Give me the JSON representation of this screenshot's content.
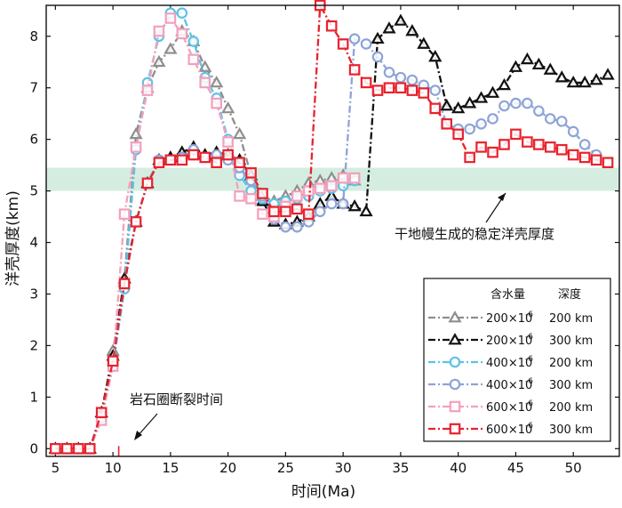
{
  "chart_data": {
    "type": "line",
    "xlabel": "时间(Ma)",
    "ylabel": "洋壳厚度(km)",
    "xlim": [
      4.2,
      54
    ],
    "ylim": [
      -0.15,
      8.6
    ],
    "xticks": [
      "5",
      "10",
      "15",
      "20",
      "25",
      "30",
      "35",
      "40",
      "45",
      "50"
    ],
    "yticks": [
      "0",
      "1",
      "2",
      "3",
      "4",
      "5",
      "6",
      "7",
      "8"
    ],
    "grid": false,
    "legend_position": "bottom-right",
    "legend_header": {
      "water": "含水量",
      "depth": "深度"
    },
    "band": {
      "y0": 5.0,
      "y1": 5.45,
      "color": "#d5ede0"
    },
    "vline": {
      "x": 10.5,
      "color": "#e8222e"
    },
    "annotations": [
      {
        "text": "干地幔生成的稳定洋壳厚度",
        "target": [
          40,
          5.15
        ]
      },
      {
        "text": "岩石圈断裂时间",
        "target": [
          10.8,
          0.15
        ]
      }
    ],
    "series": [
      {
        "water": "200×10",
        "exp": "-6",
        "depth": "200 km",
        "color": "#8e8e8e",
        "marker": "triangle",
        "dash": "8,3,2,3",
        "x": [
          5,
          6,
          7,
          8,
          9,
          10,
          11,
          12,
          13,
          14,
          15,
          16,
          17,
          18,
          19,
          20,
          21,
          22,
          23,
          24,
          25,
          26,
          27,
          28,
          29,
          30,
          31
        ],
        "y": [
          0,
          0,
          0,
          0,
          0.7,
          1.9,
          3.3,
          6.1,
          7.0,
          7.5,
          7.75,
          8.1,
          7.9,
          7.4,
          7.1,
          6.6,
          6.1,
          5.3,
          4.9,
          4.8,
          4.9,
          5.0,
          5.15,
          5.2,
          5.25,
          5.3,
          5.2
        ]
      },
      {
        "water": "200×10",
        "exp": "-6",
        "depth": "300 km",
        "color": "#111111",
        "marker": "triangle",
        "dash": "8,3,2,3",
        "x": [
          5,
          6,
          7,
          8,
          9,
          10,
          11,
          12,
          13,
          14,
          15,
          16,
          17,
          18,
          19,
          20,
          21,
          22,
          23,
          24,
          25,
          26,
          27,
          28,
          29,
          30,
          31,
          32,
          33,
          34,
          35,
          36,
          37,
          38,
          39,
          40,
          41,
          42,
          43,
          44,
          45,
          46,
          47,
          48,
          49,
          50,
          51,
          52,
          53
        ],
        "y": [
          0,
          0,
          0,
          0,
          0.7,
          1.8,
          3.3,
          4.4,
          5.15,
          5.6,
          5.65,
          5.75,
          5.85,
          5.7,
          5.75,
          5.7,
          5.6,
          5.3,
          4.8,
          4.4,
          4.35,
          4.4,
          4.5,
          4.75,
          4.9,
          4.75,
          4.7,
          4.6,
          7.95,
          8.15,
          8.3,
          8.1,
          7.85,
          7.6,
          6.65,
          6.6,
          6.7,
          6.8,
          6.9,
          7.05,
          7.4,
          7.55,
          7.45,
          7.35,
          7.2,
          7.1,
          7.1,
          7.15,
          7.25
        ]
      },
      {
        "water": "400×10",
        "exp": "-6",
        "depth": "200 km",
        "color": "#5fc2e4",
        "marker": "circle",
        "dash": "8,3,2,3",
        "x": [
          5,
          6,
          7,
          8,
          9,
          10,
          11,
          12,
          13,
          14,
          15,
          16,
          17,
          18,
          19,
          20,
          21,
          22,
          23,
          24,
          25,
          26,
          27,
          28,
          29,
          30,
          31
        ],
        "y": [
          0,
          0,
          0,
          0,
          0.6,
          1.6,
          3.1,
          5.8,
          7.1,
          8.0,
          8.45,
          8.45,
          7.9,
          7.2,
          6.8,
          6.0,
          5.3,
          5.0,
          4.85,
          4.75,
          4.8,
          4.85,
          4.9,
          5.0,
          5.05,
          5.1,
          5.2
        ]
      },
      {
        "water": "400×10",
        "exp": "-6",
        "depth": "300 km",
        "color": "#8ea4d6",
        "marker": "circle",
        "dash": "8,3,2,3",
        "x": [
          5,
          6,
          7,
          8,
          9,
          10,
          11,
          12,
          13,
          14,
          15,
          16,
          17,
          18,
          19,
          20,
          21,
          22,
          23,
          24,
          25,
          26,
          27,
          28,
          29,
          30,
          31,
          32,
          33,
          34,
          35,
          36,
          37,
          38,
          39,
          40,
          41,
          42,
          43,
          44,
          45,
          46,
          47,
          48,
          49,
          50,
          51,
          52,
          53
        ],
        "y": [
          0,
          0,
          0,
          0,
          0.6,
          1.7,
          3.2,
          4.4,
          5.15,
          5.6,
          5.6,
          5.65,
          5.8,
          5.65,
          5.7,
          5.6,
          5.45,
          5.2,
          4.9,
          4.45,
          4.3,
          4.3,
          4.4,
          4.6,
          4.75,
          4.75,
          7.95,
          7.85,
          7.6,
          7.3,
          7.2,
          7.15,
          7.05,
          6.95,
          6.3,
          6.2,
          6.2,
          6.3,
          6.4,
          6.65,
          6.7,
          6.7,
          6.55,
          6.4,
          6.35,
          6.15,
          5.9,
          5.7,
          5.55
        ]
      },
      {
        "water": "600×10",
        "exp": "-6",
        "depth": "200 km",
        "color": "#f3a0bc",
        "marker": "square",
        "dash": "8,3,2,3",
        "x": [
          5,
          6,
          7,
          8,
          9,
          10,
          11,
          12,
          13,
          14,
          15,
          16,
          17,
          18,
          19,
          20,
          21,
          22,
          23,
          24,
          25,
          26,
          27,
          28,
          29,
          30,
          31
        ],
        "y": [
          0,
          0,
          0,
          0,
          0.55,
          1.6,
          4.55,
          5.85,
          6.95,
          8.1,
          8.35,
          8.05,
          7.55,
          7.1,
          6.7,
          5.95,
          4.9,
          4.85,
          4.55,
          4.5,
          4.7,
          4.9,
          5.0,
          5.05,
          5.1,
          5.25,
          5.25
        ]
      },
      {
        "water": "600×10",
        "exp": "-6",
        "depth": "300 km",
        "color": "#e8222e",
        "marker": "square",
        "dash": "8,3,2,3",
        "x": [
          5,
          6,
          7,
          8,
          9,
          10,
          11,
          12,
          13,
          14,
          15,
          16,
          17,
          18,
          19,
          20,
          21,
          22,
          23,
          24,
          25,
          26,
          27,
          28,
          29,
          30,
          31,
          32,
          33,
          34,
          35,
          36,
          37,
          38,
          39,
          40,
          41,
          42,
          43,
          44,
          45,
          46,
          47,
          48,
          49,
          50,
          51,
          52,
          53
        ],
        "y": [
          0,
          0,
          0,
          0,
          0.7,
          1.7,
          3.2,
          4.4,
          5.15,
          5.55,
          5.6,
          5.6,
          5.7,
          5.65,
          5.55,
          5.7,
          5.55,
          5.35,
          4.95,
          4.6,
          4.6,
          4.65,
          4.55,
          8.6,
          8.2,
          7.85,
          7.35,
          7.1,
          6.95,
          7.0,
          7.0,
          6.95,
          6.9,
          6.6,
          6.3,
          6.1,
          5.65,
          5.85,
          5.75,
          5.9,
          6.1,
          5.95,
          5.9,
          5.85,
          5.8,
          5.7,
          5.65,
          5.6,
          5.55
        ]
      }
    ]
  }
}
